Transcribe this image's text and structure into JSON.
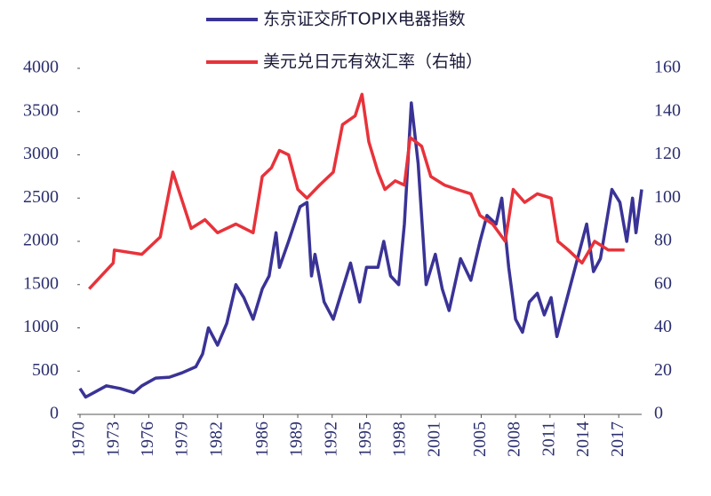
{
  "chart_data": {
    "type": "line",
    "legend": "top",
    "xlim": [
      1970,
      2019
    ],
    "xticks": [
      1970,
      1973,
      1976,
      1979,
      1982,
      1986,
      1989,
      1992,
      1995,
      1998,
      2001,
      2005,
      2008,
      2011,
      2014,
      2017
    ],
    "ylim": [
      0,
      4000
    ],
    "yticks": [
      0,
      500,
      1000,
      1500,
      2000,
      2500,
      3000,
      3500,
      4000
    ],
    "y2lim": [
      0,
      160
    ],
    "y2ticks": [
      0,
      20,
      40,
      60,
      80,
      100,
      120,
      140,
      160
    ],
    "series": [
      {
        "name": "东京证交所TOPIX电器指数",
        "color": "#3a3396",
        "x": [
          1970.0,
          1970.5,
          1971.2,
          1972.3,
          1973.5,
          1974.7,
          1975.4,
          1976.6,
          1977.8,
          1978.9,
          1980.1,
          1980.7,
          1981.2,
          1982.0,
          1982.8,
          1983.6,
          1984.3,
          1985.1,
          1985.9,
          1986.5,
          1987.1,
          1987.4,
          1988.2,
          1989.2,
          1989.8,
          1990.2,
          1990.5,
          1991.3,
          1992.1,
          1992.9,
          1993.6,
          1994.4,
          1995.0,
          1996.0,
          1996.5,
          1997.1,
          1997.8,
          1998.3,
          1998.9,
          1999.5,
          2000.2,
          2001.0,
          2001.6,
          2002.2,
          2003.2,
          2004.1,
          2004.9,
          2005.5,
          2006.3,
          2006.8,
          2007.4,
          2008.0,
          2008.6,
          2009.2,
          2009.9,
          2010.5,
          2011.1,
          2011.6,
          2012.6,
          2013.4,
          2014.2,
          2014.8,
          2015.4,
          2016.4,
          2017.1,
          2017.7,
          2018.2,
          2018.5,
          2019.0
        ],
        "values": [
          300,
          200,
          250,
          330,
          300,
          250,
          330,
          420,
          430,
          480,
          550,
          700,
          1000,
          800,
          1050,
          1500,
          1350,
          1100,
          1450,
          1600,
          2100,
          1700,
          2000,
          2400,
          2450,
          1600,
          1850,
          1300,
          1100,
          1450,
          1750,
          1300,
          1700,
          1700,
          2000,
          1600,
          1500,
          2200,
          3600,
          2900,
          1500,
          1850,
          1450,
          1200,
          1800,
          1550,
          2000,
          2300,
          2200,
          2500,
          1700,
          1100,
          950,
          1300,
          1400,
          1150,
          1350,
          900,
          1400,
          1800,
          2200,
          1650,
          1800,
          2600,
          2450,
          2000,
          2500,
          2100,
          2600
        ]
      },
      {
        "name": "美元兑日元有效汇率（右轴）",
        "color": "#e8323a",
        "axis": "y2",
        "x": [
          1970.8,
          1972.9,
          1973.0,
          1975.4,
          1977.0,
          1978.1,
          1979.7,
          1980.9,
          1982.0,
          1983.6,
          1985.1,
          1985.9,
          1986.7,
          1987.4,
          1988.2,
          1989.0,
          1989.8,
          1990.9,
          1992.1,
          1992.9,
          1994.0,
          1994.6,
          1995.2,
          1996.0,
          1996.6,
          1997.5,
          1998.3,
          1998.8,
          1999.8,
          2000.6,
          2001.8,
          2002.9,
          2004.1,
          2004.9,
          2006.0,
          2007.1,
          2007.8,
          2008.8,
          2009.9,
          2011.1,
          2011.7,
          2012.6,
          2013.8,
          2014.9,
          2016.1,
          2017.5
        ],
        "values": [
          58,
          70,
          76,
          74,
          82,
          112,
          86,
          90,
          84,
          88,
          84,
          110,
          114,
          122,
          120,
          104,
          100,
          106,
          112,
          134,
          138,
          148,
          126,
          112,
          104,
          108,
          106,
          128,
          124,
          110,
          106,
          104,
          102,
          92,
          88,
          80,
          104,
          98,
          102,
          100,
          80,
          76,
          70,
          80,
          76,
          76
        ]
      }
    ]
  }
}
